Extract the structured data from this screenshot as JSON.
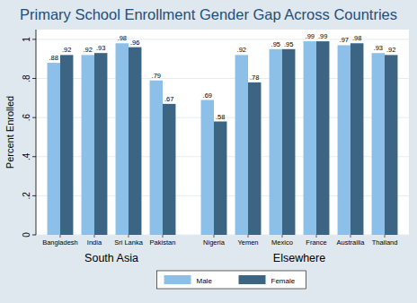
{
  "chart_data": {
    "type": "bar",
    "title": "Primary School Enrollment Gender Gap Across Countries",
    "y_label": "Percent Enrolled",
    "categories": [
      "Bangladesh",
      "India",
      "Sri Lanka",
      "Pakistan",
      "Nigeria",
      "Yemen",
      "Mexico",
      "France",
      "Austrailia",
      "Thailand"
    ],
    "groups": [
      {
        "name": "South Asia",
        "count": 4
      },
      {
        "name": "Elsewhere",
        "count": 6
      }
    ],
    "series": [
      {
        "name": "Male",
        "color": "#8cc0e8",
        "values": [
          0.88,
          0.92,
          0.98,
          0.79,
          0.69,
          0.92,
          0.95,
          0.99,
          0.97,
          0.93
        ],
        "value_labels": [
          ".88",
          ".92",
          ".98",
          ".79",
          ".69",
          ".92",
          ".95",
          ".99",
          ".97",
          ".93"
        ]
      },
      {
        "name": "Female",
        "color": "#3b6583",
        "values": [
          0.92,
          0.93,
          0.96,
          0.67,
          0.58,
          0.78,
          0.95,
          0.99,
          0.98,
          0.92
        ],
        "value_labels": [
          ".92",
          ".93",
          ".96",
          ".67",
          ".58",
          ".78",
          ".95",
          ".99",
          ".98",
          ".92"
        ]
      }
    ],
    "ylim": [
      0,
      1.05
    ],
    "yticks": [
      0,
      {
        "value": 0.2,
        "label": ".2"
      },
      {
        "value": 0.4,
        "label": ".4"
      },
      {
        "value": 0.6,
        "label": ".6"
      },
      {
        "value": 0.8,
        "label": ".8"
      },
      1
    ],
    "grid": true,
    "data_labels": true,
    "legend": "bottom"
  }
}
